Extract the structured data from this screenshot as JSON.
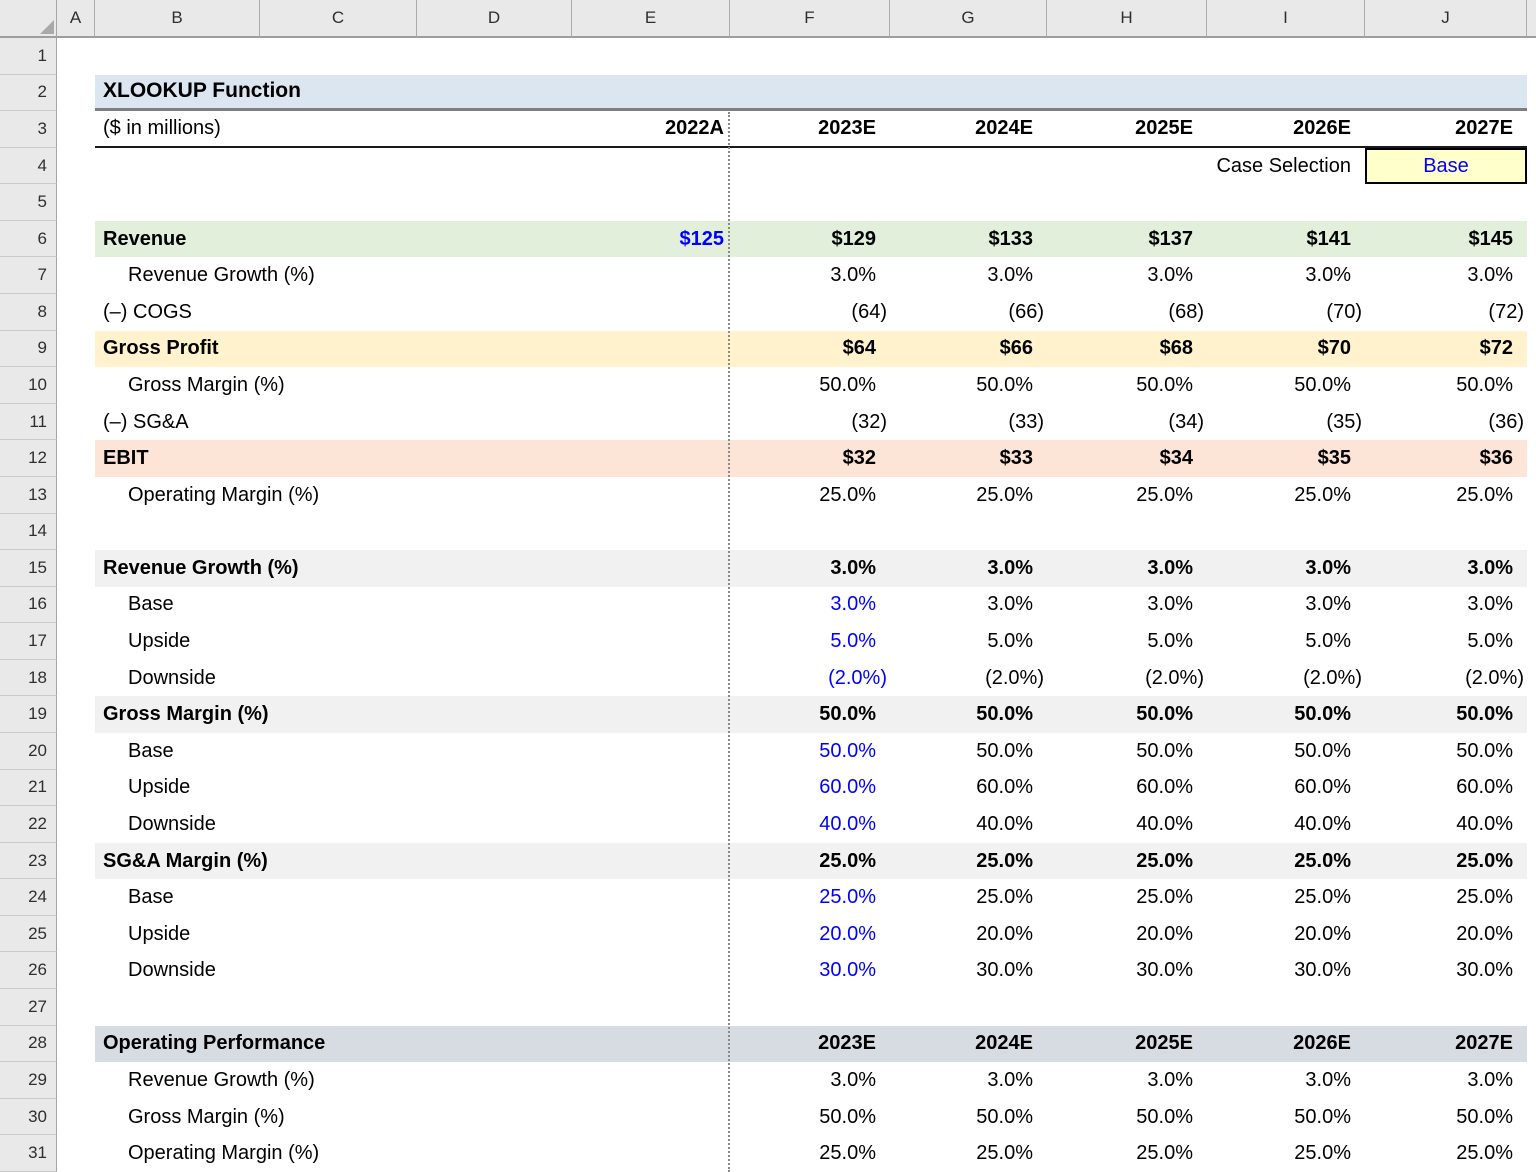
{
  "sheet": {
    "column_letters": [
      "A",
      "B",
      "C",
      "D",
      "E",
      "F",
      "G",
      "H",
      "I",
      "J"
    ],
    "num_rows": 31
  },
  "header": {
    "title": "XLOOKUP Function",
    "subtitle": "($ in millions)",
    "historical_year": "2022A",
    "projection_years": [
      "2023E",
      "2024E",
      "2025E",
      "2026E",
      "2027E"
    ],
    "case_selection_label": "Case Selection",
    "case_selection_value": "Base"
  },
  "colors": {
    "title_fill": "#DCE6F1",
    "revenue_fill": "#E2EFDA",
    "gross_profit_fill": "#FFF2CC",
    "ebit_fill": "#FCE4D6",
    "section_fill": "#F1F1F1",
    "operating_performance_fill": "#D7DCE3",
    "case_cell_fill": "#FFFFCC",
    "input_text": "#0000FF"
  },
  "rows": [
    {
      "n": 1,
      "type": "blank"
    },
    {
      "n": 2,
      "type": "title",
      "fill": "title",
      "bold": true,
      "rule": "gray",
      "label": "XLOOKUP Function"
    },
    {
      "n": 3,
      "type": "head",
      "vbold": true,
      "rule": "black",
      "label": "($ in millions)",
      "e": "2022A",
      "vals": [
        "2023E",
        "2024E",
        "2025E",
        "2026E",
        "2027E"
      ]
    },
    {
      "n": 4,
      "type": "case",
      "label": "Case Selection",
      "value": "Base"
    },
    {
      "n": 5,
      "type": "blank"
    },
    {
      "n": 6,
      "type": "data",
      "fill": "revenue",
      "bold": true,
      "label": "Revenue",
      "e": "$125",
      "e_blue": true,
      "vals": [
        "$129",
        "$133",
        "$137",
        "$141",
        "$145"
      ]
    },
    {
      "n": 7,
      "type": "data",
      "indent": true,
      "label": "Revenue Growth (%)",
      "vals": [
        "3.0%",
        "3.0%",
        "3.0%",
        "3.0%",
        "3.0%"
      ]
    },
    {
      "n": 8,
      "type": "data",
      "label": "(–) COGS",
      "vals": [
        "(64)",
        "(66)",
        "(68)",
        "(70)",
        "(72)"
      ]
    },
    {
      "n": 9,
      "type": "data",
      "fill": "gross_profit",
      "bold": true,
      "label": "Gross Profit",
      "vals": [
        "$64",
        "$66",
        "$68",
        "$70",
        "$72"
      ]
    },
    {
      "n": 10,
      "type": "data",
      "indent": true,
      "label": "Gross Margin (%)",
      "vals": [
        "50.0%",
        "50.0%",
        "50.0%",
        "50.0%",
        "50.0%"
      ]
    },
    {
      "n": 11,
      "type": "data",
      "label": "(–) SG&A",
      "vals": [
        "(32)",
        "(33)",
        "(34)",
        "(35)",
        "(36)"
      ]
    },
    {
      "n": 12,
      "type": "data",
      "fill": "ebit",
      "bold": true,
      "label": "EBIT",
      "vals": [
        "$32",
        "$33",
        "$34",
        "$35",
        "$36"
      ]
    },
    {
      "n": 13,
      "type": "data",
      "indent": true,
      "label": "Operating Margin (%)",
      "vals": [
        "25.0%",
        "25.0%",
        "25.0%",
        "25.0%",
        "25.0%"
      ]
    },
    {
      "n": 14,
      "type": "blank"
    },
    {
      "n": 15,
      "type": "data",
      "fill": "section",
      "bold": true,
      "label": "Revenue Growth (%)",
      "vals": [
        "3.0%",
        "3.0%",
        "3.0%",
        "3.0%",
        "3.0%"
      ]
    },
    {
      "n": 16,
      "type": "data",
      "indent": true,
      "blue_first": true,
      "label": "Base",
      "vals": [
        "3.0%",
        "3.0%",
        "3.0%",
        "3.0%",
        "3.0%"
      ]
    },
    {
      "n": 17,
      "type": "data",
      "indent": true,
      "blue_first": true,
      "label": "Upside",
      "vals": [
        "5.0%",
        "5.0%",
        "5.0%",
        "5.0%",
        "5.0%"
      ]
    },
    {
      "n": 18,
      "type": "data",
      "indent": true,
      "blue_first": true,
      "label": "Downside",
      "vals": [
        "(2.0%)",
        "(2.0%)",
        "(2.0%)",
        "(2.0%)",
        "(2.0%)"
      ]
    },
    {
      "n": 19,
      "type": "data",
      "fill": "section",
      "bold": true,
      "label": "Gross Margin (%)",
      "vals": [
        "50.0%",
        "50.0%",
        "50.0%",
        "50.0%",
        "50.0%"
      ]
    },
    {
      "n": 20,
      "type": "data",
      "indent": true,
      "blue_first": true,
      "label": "Base",
      "vals": [
        "50.0%",
        "50.0%",
        "50.0%",
        "50.0%",
        "50.0%"
      ]
    },
    {
      "n": 21,
      "type": "data",
      "indent": true,
      "blue_first": true,
      "label": "Upside",
      "vals": [
        "60.0%",
        "60.0%",
        "60.0%",
        "60.0%",
        "60.0%"
      ]
    },
    {
      "n": 22,
      "type": "data",
      "indent": true,
      "blue_first": true,
      "label": "Downside",
      "vals": [
        "40.0%",
        "40.0%",
        "40.0%",
        "40.0%",
        "40.0%"
      ]
    },
    {
      "n": 23,
      "type": "data",
      "fill": "section",
      "bold": true,
      "label": "SG&A Margin (%)",
      "vals": [
        "25.0%",
        "25.0%",
        "25.0%",
        "25.0%",
        "25.0%"
      ]
    },
    {
      "n": 24,
      "type": "data",
      "indent": true,
      "blue_first": true,
      "label": "Base",
      "vals": [
        "25.0%",
        "25.0%",
        "25.0%",
        "25.0%",
        "25.0%"
      ]
    },
    {
      "n": 25,
      "type": "data",
      "indent": true,
      "blue_first": true,
      "label": "Upside",
      "vals": [
        "20.0%",
        "20.0%",
        "20.0%",
        "20.0%",
        "20.0%"
      ]
    },
    {
      "n": 26,
      "type": "data",
      "indent": true,
      "blue_first": true,
      "label": "Downside",
      "vals": [
        "30.0%",
        "30.0%",
        "30.0%",
        "30.0%",
        "30.0%"
      ]
    },
    {
      "n": 27,
      "type": "blank"
    },
    {
      "n": 28,
      "type": "data",
      "fill": "operating_performance",
      "bold": true,
      "label": "Operating Performance",
      "vals": [
        "2023E",
        "2024E",
        "2025E",
        "2026E",
        "2027E"
      ]
    },
    {
      "n": 29,
      "type": "data",
      "indent": true,
      "label": "Revenue Growth (%)",
      "vals": [
        "3.0%",
        "3.0%",
        "3.0%",
        "3.0%",
        "3.0%"
      ]
    },
    {
      "n": 30,
      "type": "data",
      "indent": true,
      "label": "Gross Margin (%)",
      "vals": [
        "50.0%",
        "50.0%",
        "50.0%",
        "50.0%",
        "50.0%"
      ]
    },
    {
      "n": 31,
      "type": "data",
      "indent": true,
      "label": "Operating Margin (%)",
      "vals": [
        "25.0%",
        "25.0%",
        "25.0%",
        "25.0%",
        "25.0%"
      ]
    }
  ]
}
